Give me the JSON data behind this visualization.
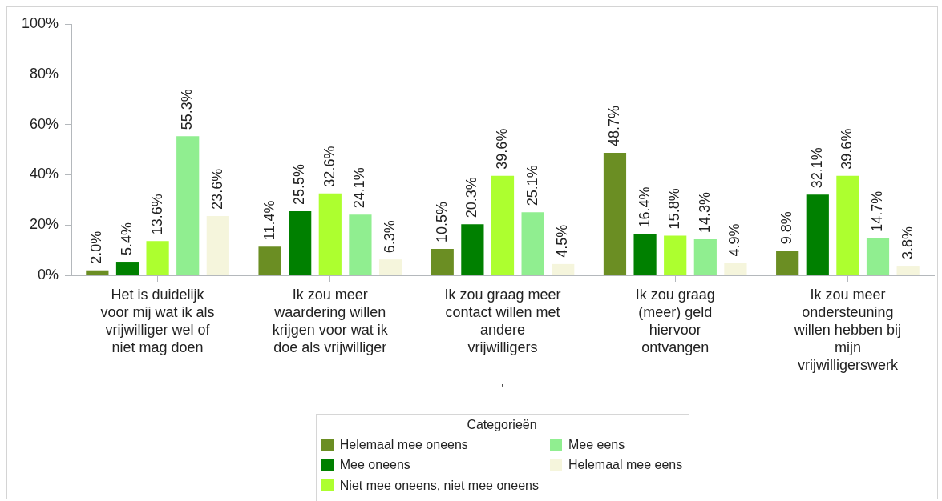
{
  "chart_data": {
    "type": "bar",
    "categories": [
      "Het is duidelijk voor mij wat ik als vrijwilliger wel of niet mag doen",
      "Ik zou meer waardering willen krijgen voor wat ik doe als vrijwilliger",
      "Ik zou graag meer contact willen met andere vrijwilligers",
      "Ik zou graag (meer) geld hiervoor ontvangen",
      "Ik zou meer ondersteuning willen hebben bij mijn vrijwilligerswerk"
    ],
    "xlabel": "'",
    "series": [
      {
        "name": "Helemaal mee oneens",
        "color": "#6b8e23",
        "values": [
          2.0,
          11.4,
          10.5,
          48.7,
          9.8
        ],
        "value_labels": [
          "2.0%",
          "11.4%",
          "10.5%",
          "48.7%",
          "9.8%"
        ]
      },
      {
        "name": "Mee oneens",
        "color": "#008000",
        "values": [
          5.4,
          25.5,
          20.3,
          16.4,
          32.1
        ],
        "value_labels": [
          "5.4%",
          "25.5%",
          "20.3%",
          "16.4%",
          "32.1%"
        ]
      },
      {
        "name": "Niet mee oneens, niet mee oneens",
        "color": "#adff2f",
        "values": [
          13.6,
          32.6,
          39.6,
          15.8,
          39.6
        ],
        "value_labels": [
          "13.6%",
          "32.6%",
          "39.6%",
          "15.8%",
          "39.6%"
        ]
      },
      {
        "name": "Mee eens",
        "color": "#90ee90",
        "values": [
          55.3,
          24.1,
          25.1,
          14.3,
          14.7
        ],
        "value_labels": [
          "55.3%",
          "24.1%",
          "25.1%",
          "14.3%",
          "14.7%"
        ]
      },
      {
        "name": "Helemaal mee eens",
        "color": "#f5f5dc",
        "values": [
          23.6,
          6.3,
          4.5,
          4.9,
          3.8
        ],
        "value_labels": [
          "23.6%",
          "6.3%",
          "4.5%",
          "4.9%",
          "3.8%"
        ]
      }
    ],
    "ylim": [
      0,
      100
    ],
    "yticks": [
      {
        "value": 0,
        "label": "0%"
      },
      {
        "value": 20,
        "label": "20%"
      },
      {
        "value": 40,
        "label": "40%"
      },
      {
        "value": 60,
        "label": "60%"
      },
      {
        "value": 80,
        "label": "80%"
      },
      {
        "value": 100,
        "label": "100%"
      }
    ],
    "legend": "bottom",
    "legend_title": "Categorieën"
  }
}
